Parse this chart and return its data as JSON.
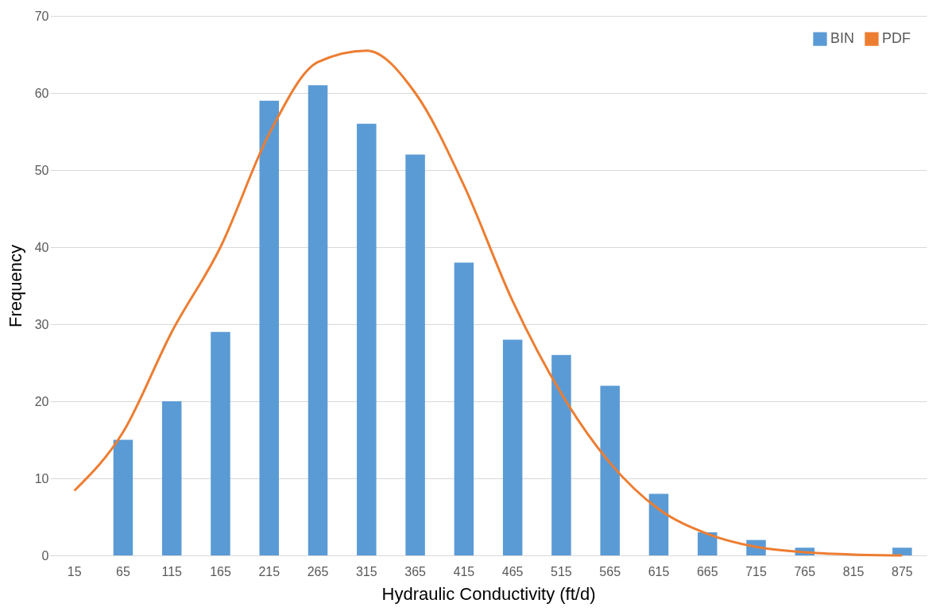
{
  "chart_data": {
    "type": "bar",
    "xlabel": "Hydraulic Conductivity (ft/d)",
    "ylabel": "Frequency",
    "categories": [
      "15",
      "65",
      "115",
      "165",
      "215",
      "265",
      "315",
      "365",
      "415",
      "465",
      "515",
      "565",
      "615",
      "665",
      "715",
      "765",
      "815",
      "875"
    ],
    "series": [
      {
        "name": "BIN",
        "color": "#5b9bd5",
        "values": [
          null,
          15,
          20,
          29,
          59,
          61,
          56,
          52,
          38,
          28,
          26,
          22,
          8,
          3,
          2,
          1,
          null,
          1
        ]
      },
      {
        "name": "PDF",
        "type": "line",
        "color": "#ed7d31",
        "values": [
          8.4,
          16,
          29,
          40,
          54.7,
          64,
          65.5,
          60,
          48,
          33,
          21,
          12,
          6,
          2.8,
          1.1,
          0.4,
          0.1,
          0
        ]
      }
    ],
    "ylim": [
      0,
      70
    ],
    "yticks": [
      0,
      10,
      20,
      30,
      40,
      50,
      60,
      70
    ],
    "grid": "y",
    "legend": "top right",
    "marker": "none",
    "line_style": "solid"
  }
}
